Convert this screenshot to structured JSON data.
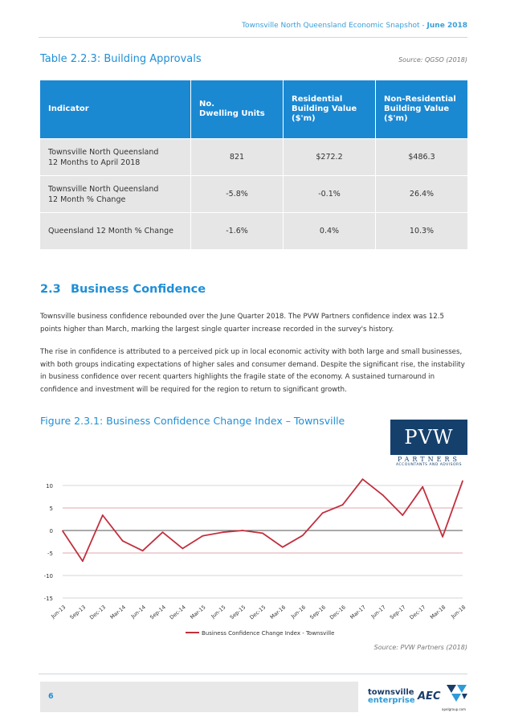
{
  "header": {
    "title": "Townsville North Queensland Economic Snapshot - ",
    "date": "June 2018"
  },
  "table": {
    "title": "Table 2.2.3: Building Approvals",
    "source": "Source: QGSO (2018)",
    "columns": [
      "Indicator",
      "No.\nDwelling Units",
      "Residential\nBuilding Value\n($'m)",
      "Non-Residential\nBuilding Value\n($'m)"
    ],
    "rows": [
      {
        "indicator": "Townsville North Queensland\n12 Months to April 2018",
        "dwellings": "821",
        "residential": "$272.2",
        "non_residential": "$486.3"
      },
      {
        "indicator": "Townsville North Queensland\n12 Month % Change",
        "dwellings": "-5.8%",
        "residential": "-0.1%",
        "non_residential": "26.4%"
      },
      {
        "indicator": "Queensland 12 Month % Change",
        "dwellings": "-1.6%",
        "residential": "0.4%",
        "non_residential": "10.3%"
      }
    ]
  },
  "section": {
    "number": "2.3",
    "title": "Business Confidence",
    "paragraphs": [
      "Townsville business confidence rebounded over the June Quarter 2018. The PVW Partners confidence index was 12.5 points higher than March, marking the largest single quarter increase recorded in the survey's history.",
      "The rise in confidence is attributed to a perceived pick up in local economic activity with both large and small businesses, with both groups indicating expectations of higher sales and consumer demand. Despite the significant rise, the instability in business confidence over recent quarters highlights the fragile state of the economy. A sustained turnaround in confidence and investment will be required for the region to return to significant growth."
    ]
  },
  "figure": {
    "title": "Figure 2.3.1: Business Confidence Change Index – Townsville",
    "source": "Source: PVW Partners (2018)",
    "logo": {
      "name": "PVW",
      "partners": "PARTNERS",
      "sub": "ACCOUNTANTS AND ADVISORS"
    }
  },
  "chart_data": {
    "type": "line",
    "categories": [
      "Jun-13",
      "Sep-13",
      "Dec-13",
      "Mar-14",
      "Jun-14",
      "Sep-14",
      "Dec-14",
      "Mar-15",
      "Jun-15",
      "Sep-15",
      "Dec-15",
      "Mar-16",
      "Jun-16",
      "Sep-16",
      "Dec-16",
      "Mar-17",
      "Jun-17",
      "Sep-17",
      "Dec-17",
      "Mar-18",
      "Jun-18"
    ],
    "series": [
      {
        "name": "Business Confidence Change Index - Townsville",
        "values": [
          -0.1,
          -6.8,
          3.4,
          -2.3,
          -4.5,
          -0.4,
          -4.0,
          -1.2,
          -0.4,
          0.0,
          -0.6,
          -3.7,
          -1.1,
          3.9,
          5.7,
          11.4,
          7.9,
          3.4,
          9.7,
          -1.4,
          11.0
        ]
      }
    ],
    "yticks": [
      10,
      5,
      0,
      -5,
      -10,
      -15
    ],
    "ylim": [
      -15,
      10
    ],
    "legend": "bottom",
    "colors": {
      "line": "#c1303e",
      "accent": "#1f8fd6",
      "header_bg": "#1b88d2"
    }
  },
  "footer": {
    "page": "6",
    "logo_text_1": "townsville",
    "logo_text_2": "enterprise",
    "aec": "AEC",
    "aec_sub": "apelgroup.com"
  }
}
